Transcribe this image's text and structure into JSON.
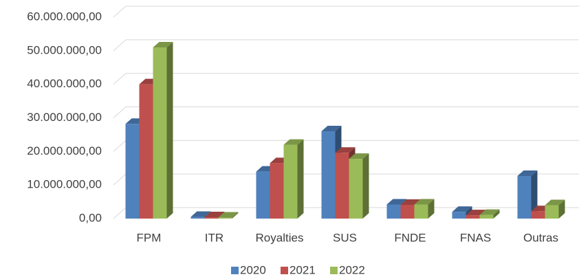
{
  "chart_data": {
    "type": "bar3d",
    "categories": [
      "FPM",
      "ITR",
      "Royalties",
      "SUS",
      "FNDE",
      "FNAS",
      "Outras"
    ],
    "series": [
      {
        "name": "2020",
        "color": "#4f81bd",
        "values": [
          28200000,
          500000,
          14000000,
          26000000,
          4200000,
          2000000,
          12700000
        ]
      },
      {
        "name": "2021",
        "color": "#c0504d",
        "values": [
          40000000,
          400000,
          16500000,
          19600000,
          4100000,
          1000000,
          2200000
        ]
      },
      {
        "name": "2022",
        "color": "#9bbb59",
        "values": [
          51000000,
          300000,
          22000000,
          17800000,
          4200000,
          1100000,
          4000000
        ]
      }
    ],
    "ylim": [
      0,
      60000000
    ],
    "yticks": [
      {
        "value": 0,
        "label": "0,00"
      },
      {
        "value": 10000000,
        "label": "10.000.000,00"
      },
      {
        "value": 20000000,
        "label": "20.000.000,00"
      },
      {
        "value": 30000000,
        "label": "30.000.000,00"
      },
      {
        "value": 40000000,
        "label": "40.000.000,00"
      },
      {
        "value": 50000000,
        "label": "50.000.000,00"
      },
      {
        "value": 60000000,
        "label": "60.000.000,00"
      }
    ],
    "grid": true,
    "legend": "bottom"
  }
}
